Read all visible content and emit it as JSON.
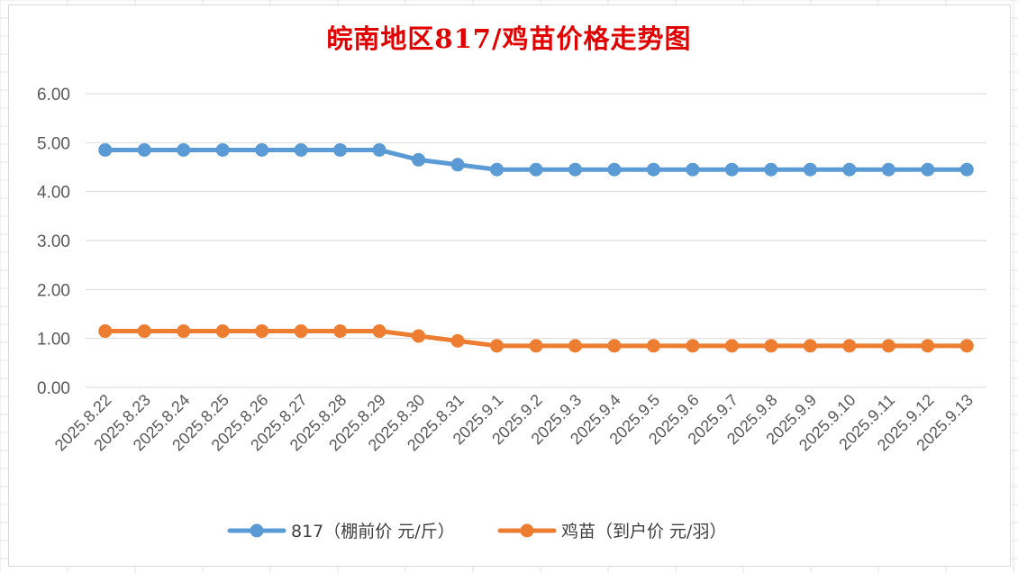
{
  "chart_data": {
    "type": "line",
    "title": "皖南地区817/鸡苗价格走势图",
    "xlabel": "",
    "ylabel": "",
    "ylim": [
      0,
      6
    ],
    "yticks": [
      "0.00",
      "1.00",
      "2.00",
      "3.00",
      "4.00",
      "5.00",
      "6.00"
    ],
    "grid": "horizontal",
    "legend_position": "bottom",
    "categories": [
      "2025.8.22",
      "2025.8.23",
      "2025.8.24",
      "2025.8.25",
      "2025.8.26",
      "2025.8.27",
      "2025.8.28",
      "2025.8.29",
      "2025.8.30",
      "2025.8.31",
      "2025.9.1",
      "2025.9.2",
      "2025.9.3",
      "2025.9.4",
      "2025.9.5",
      "2025.9.6",
      "2025.9.7",
      "2025.9.8",
      "2025.9.9",
      "2025.9.10",
      "2025.9.11",
      "2025.9.12",
      "2025.9.13"
    ],
    "series": [
      {
        "name": "817（棚前价 元/斤）",
        "color": "#5b9bd5",
        "values": [
          4.85,
          4.85,
          4.85,
          4.85,
          4.85,
          4.85,
          4.85,
          4.85,
          4.65,
          4.55,
          4.45,
          4.45,
          4.45,
          4.45,
          4.45,
          4.45,
          4.45,
          4.45,
          4.45,
          4.45,
          4.45,
          4.45,
          4.45
        ]
      },
      {
        "name": "鸡苗（到户价 元/羽）",
        "color": "#ed7d31",
        "values": [
          1.15,
          1.15,
          1.15,
          1.15,
          1.15,
          1.15,
          1.15,
          1.15,
          1.05,
          0.95,
          0.85,
          0.85,
          0.85,
          0.85,
          0.85,
          0.85,
          0.85,
          0.85,
          0.85,
          0.85,
          0.85,
          0.85,
          0.85
        ]
      }
    ]
  }
}
